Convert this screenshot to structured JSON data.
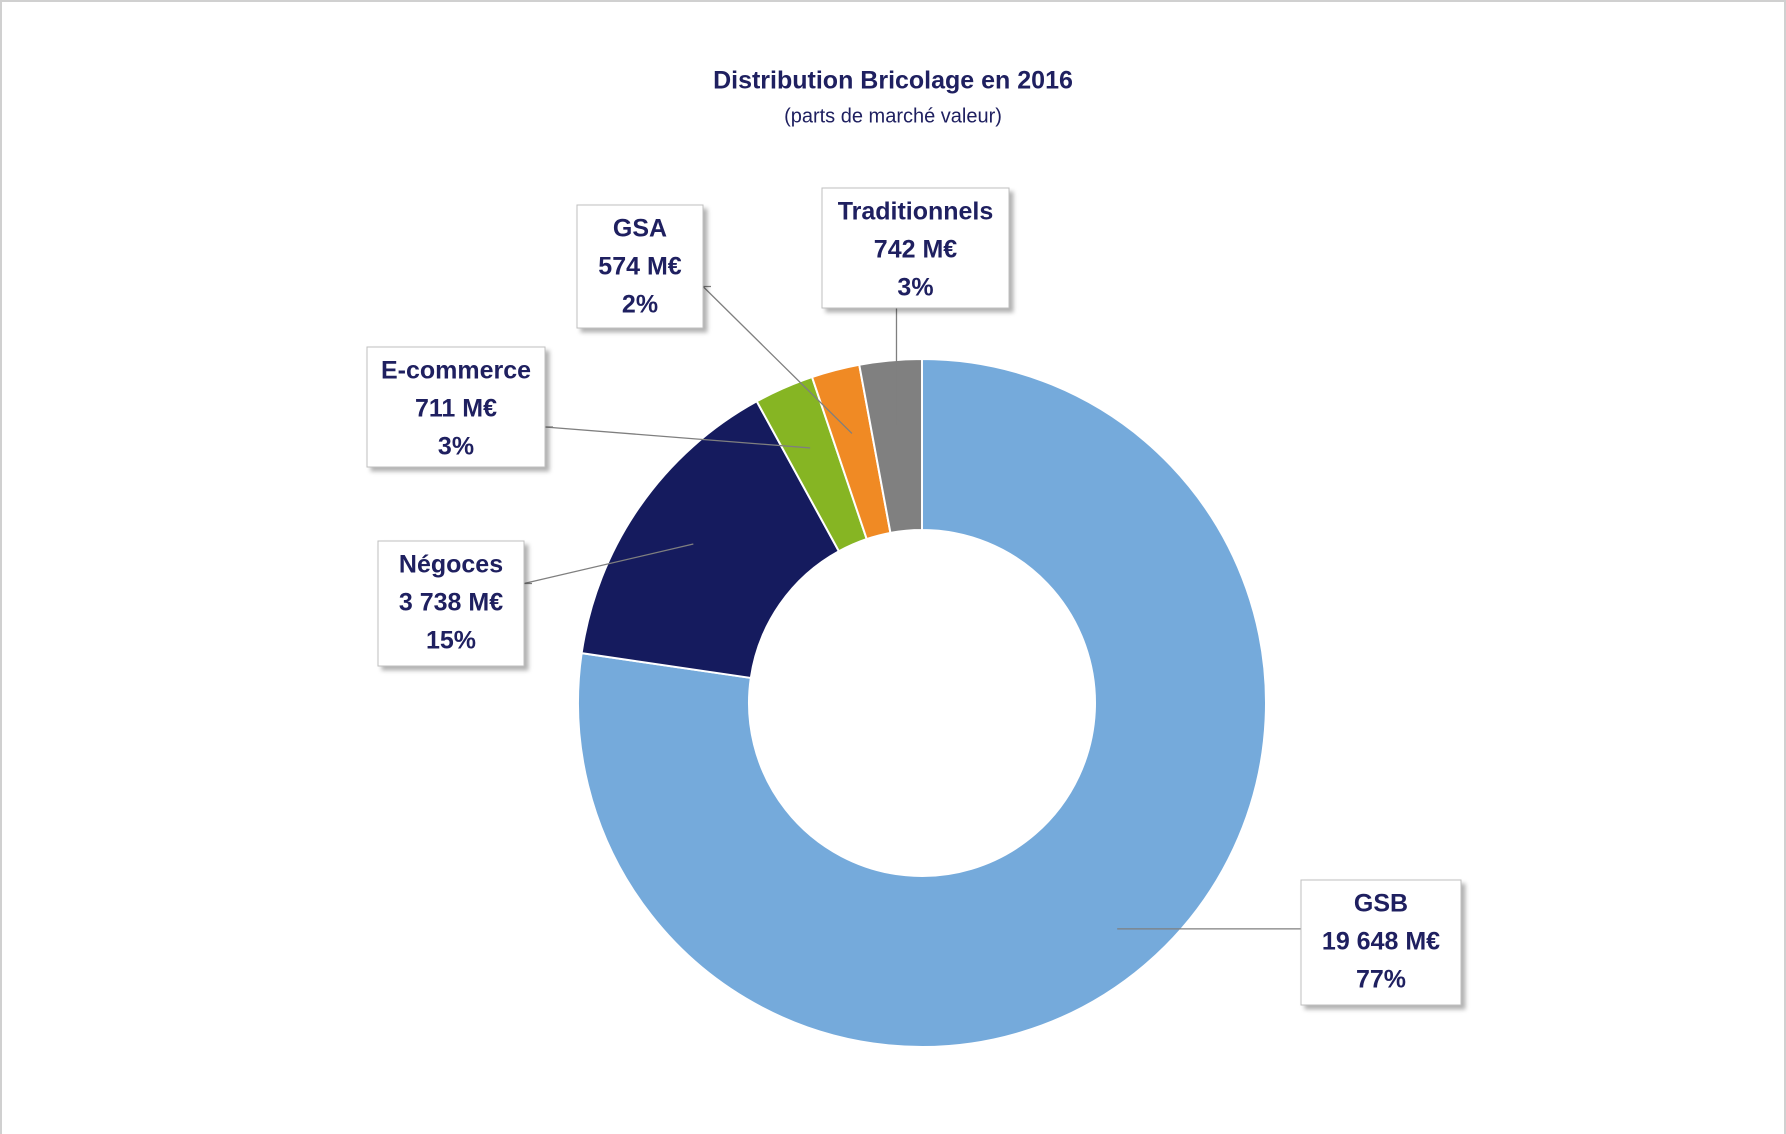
{
  "chart_data": {
    "type": "donut",
    "title": "Distribution Bricolage en 2016",
    "subtitle": "(parts de marché valeur)",
    "categories": [
      "GSB",
      "Négoces",
      "E-commerce",
      "GSA",
      "Traditionnels"
    ],
    "values": [
      19648,
      3738,
      711,
      574,
      742
    ],
    "value_labels": [
      "19 648  M€",
      "3 738  M€",
      "711  M€",
      "574  M€",
      "742  M€"
    ],
    "percents": [
      77,
      15,
      3,
      2,
      3
    ],
    "percent_labels": [
      "77%",
      "15%",
      "3%",
      "2%",
      "3%"
    ],
    "colors": [
      "#75aadb",
      "#151b5e",
      "#86b523",
      "#f08a24",
      "#808080"
    ]
  }
}
